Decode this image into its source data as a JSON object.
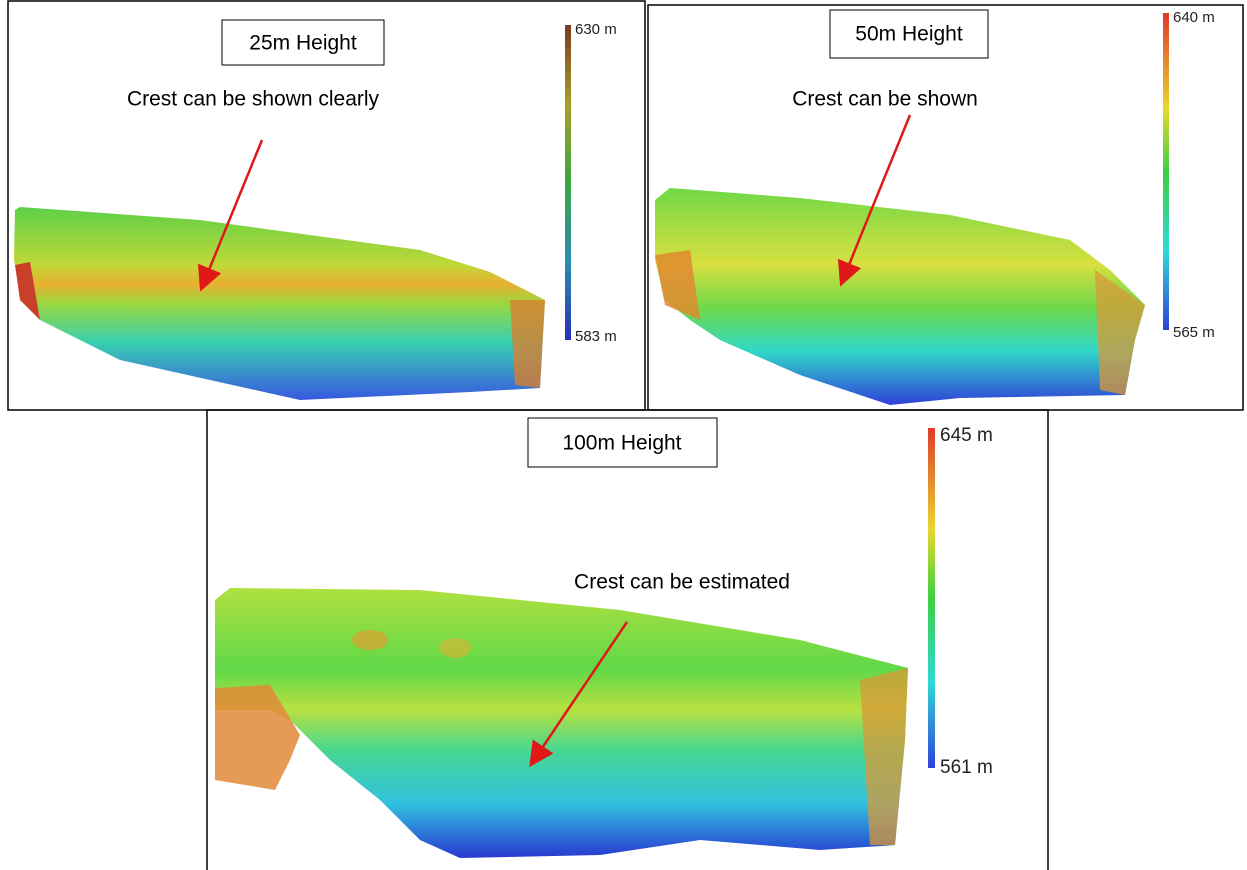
{
  "panels": [
    {
      "title": "25m Height",
      "annotation": "Crest can be shown clearly",
      "scale_max": "630 m",
      "scale_min": "583 m"
    },
    {
      "title": "50m Height",
      "annotation": "Crest can be shown",
      "scale_max": "640 m",
      "scale_min": "565 m"
    },
    {
      "title": "100m Height",
      "annotation": "Crest can be estimated",
      "scale_max": "645 m",
      "scale_min": "561 m"
    }
  ]
}
